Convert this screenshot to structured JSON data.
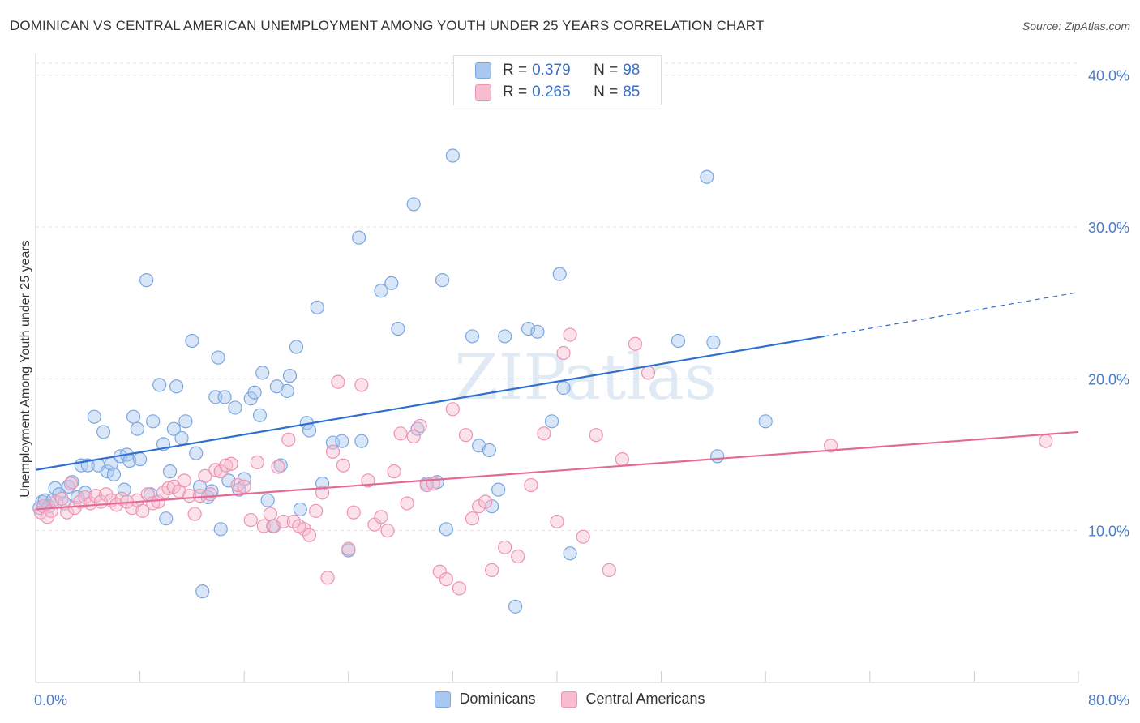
{
  "title": "DOMINICAN VS CENTRAL AMERICAN UNEMPLOYMENT AMONG YOUTH UNDER 25 YEARS CORRELATION CHART",
  "source": "Source: ZipAtlas.com",
  "watermark": "ZIPatlas",
  "legend_top": [
    {
      "r_label": "R =",
      "r_value": "0.379",
      "n_label": "N =",
      "n_value": "98",
      "color": "#a9c8ef",
      "border": "#7aa7e0"
    },
    {
      "r_label": "R =",
      "r_value": "0.265",
      "n_label": "N =",
      "n_value": "85",
      "color": "#f7bcd0",
      "border": "#ee93b2"
    }
  ],
  "legend_bottom": [
    {
      "label": "Dominicans",
      "color": "#a9c8ef",
      "border": "#7aa7e0"
    },
    {
      "label": "Central Americans",
      "color": "#f7bcd0",
      "border": "#ee93b2"
    }
  ],
  "chart_data": {
    "type": "scatter",
    "title": "DOMINICAN VS CENTRAL AMERICAN UNEMPLOYMENT AMONG YOUTH UNDER 25 YEARS CORRELATION CHART",
    "xlabel": "",
    "ylabel": "Unemployment Among Youth under 25 years",
    "xlim": [
      0,
      80
    ],
    "ylim": [
      0,
      41
    ],
    "x_tick_labels": [
      "0.0%",
      "80.0%"
    ],
    "y_ticks": [
      10,
      20,
      30,
      40
    ],
    "y_tick_labels": [
      "10.0%",
      "20.0%",
      "30.0%",
      "40.0%"
    ],
    "grid": true,
    "series": [
      {
        "name": "Dominicans",
        "color": "#7aa7e0",
        "fill": "#a9c8ef",
        "trend_color": "#2f6fcf",
        "trend": {
          "x0": 0,
          "y0": 14.0,
          "x1": 60.5,
          "y1": 22.8,
          "x_dash_end": 80,
          "y_dash_end": 25.7
        },
        "points": [
          [
            0.3,
            11.5
          ],
          [
            0.5,
            11.9
          ],
          [
            0.7,
            12.0
          ],
          [
            1.0,
            11.6
          ],
          [
            1.3,
            12.0
          ],
          [
            1.5,
            12.8
          ],
          [
            1.8,
            12.4
          ],
          [
            2.2,
            11.8
          ],
          [
            2.5,
            12.9
          ],
          [
            2.8,
            13.2
          ],
          [
            3.2,
            12.2
          ],
          [
            3.5,
            14.3
          ],
          [
            3.8,
            12.5
          ],
          [
            4.0,
            14.3
          ],
          [
            4.5,
            17.5
          ],
          [
            4.8,
            14.3
          ],
          [
            5.2,
            16.5
          ],
          [
            5.5,
            13.9
          ],
          [
            5.8,
            14.4
          ],
          [
            6.0,
            13.7
          ],
          [
            6.5,
            14.9
          ],
          [
            6.8,
            12.7
          ],
          [
            7.0,
            15.0
          ],
          [
            7.2,
            14.6
          ],
          [
            7.5,
            17.5
          ],
          [
            7.8,
            16.7
          ],
          [
            8.0,
            14.7
          ],
          [
            8.5,
            26.5
          ],
          [
            8.8,
            12.4
          ],
          [
            9.0,
            17.2
          ],
          [
            9.5,
            19.6
          ],
          [
            9.8,
            15.7
          ],
          [
            10.0,
            10.8
          ],
          [
            10.3,
            13.9
          ],
          [
            10.6,
            16.7
          ],
          [
            10.8,
            19.5
          ],
          [
            11.2,
            16.1
          ],
          [
            11.5,
            17.2
          ],
          [
            12.0,
            22.5
          ],
          [
            12.3,
            15.1
          ],
          [
            12.6,
            12.9
          ],
          [
            12.8,
            6.0
          ],
          [
            13.2,
            12.2
          ],
          [
            13.5,
            12.6
          ],
          [
            13.8,
            18.8
          ],
          [
            14.0,
            21.4
          ],
          [
            14.2,
            10.1
          ],
          [
            14.5,
            18.8
          ],
          [
            14.8,
            13.3
          ],
          [
            15.3,
            18.1
          ],
          [
            15.6,
            12.7
          ],
          [
            16.0,
            13.4
          ],
          [
            16.5,
            18.7
          ],
          [
            16.8,
            19.1
          ],
          [
            17.2,
            17.6
          ],
          [
            17.4,
            20.4
          ],
          [
            17.8,
            12.0
          ],
          [
            18.2,
            10.3
          ],
          [
            18.5,
            19.5
          ],
          [
            18.8,
            14.3
          ],
          [
            19.3,
            19.2
          ],
          [
            19.5,
            20.2
          ],
          [
            20.0,
            22.1
          ],
          [
            20.3,
            11.4
          ],
          [
            20.8,
            17.1
          ],
          [
            21.0,
            16.6
          ],
          [
            21.6,
            24.7
          ],
          [
            22.0,
            13.1
          ],
          [
            22.8,
            15.8
          ],
          [
            23.5,
            15.9
          ],
          [
            24.0,
            8.7
          ],
          [
            24.8,
            29.3
          ],
          [
            25.0,
            15.9
          ],
          [
            26.5,
            25.8
          ],
          [
            27.3,
            26.3
          ],
          [
            27.8,
            23.3
          ],
          [
            29.0,
            31.5
          ],
          [
            29.3,
            16.7
          ],
          [
            30.0,
            13.1
          ],
          [
            30.8,
            13.2
          ],
          [
            31.2,
            26.5
          ],
          [
            31.5,
            10.1
          ],
          [
            32.0,
            34.7
          ],
          [
            33.5,
            22.8
          ],
          [
            34.0,
            15.6
          ],
          [
            34.8,
            15.3
          ],
          [
            35.0,
            11.6
          ],
          [
            35.5,
            12.7
          ],
          [
            36.0,
            22.8
          ],
          [
            36.8,
            5.0
          ],
          [
            37.8,
            23.3
          ],
          [
            38.5,
            23.1
          ],
          [
            39.6,
            17.2
          ],
          [
            40.2,
            26.9
          ],
          [
            40.5,
            19.4
          ],
          [
            41.0,
            8.5
          ],
          [
            49.3,
            22.5
          ],
          [
            51.5,
            33.3
          ],
          [
            52.0,
            22.4
          ],
          [
            52.3,
            14.9
          ],
          [
            56.0,
            17.2
          ]
        ]
      },
      {
        "name": "Central Americans",
        "color": "#ee93b2",
        "fill": "#f7bcd0",
        "trend_color": "#e46a94",
        "trend": {
          "x0": 0,
          "y0": 11.4,
          "x1": 80,
          "y1": 16.5
        },
        "points": [
          [
            0.4,
            11.2
          ],
          [
            0.6,
            11.6
          ],
          [
            0.9,
            10.9
          ],
          [
            1.2,
            11.3
          ],
          [
            1.6,
            11.9
          ],
          [
            2.0,
            12.1
          ],
          [
            2.4,
            11.2
          ],
          [
            2.7,
            13.1
          ],
          [
            3.0,
            11.5
          ],
          [
            3.4,
            11.9
          ],
          [
            3.8,
            12.2
          ],
          [
            4.2,
            11.8
          ],
          [
            4.6,
            12.3
          ],
          [
            5.0,
            11.9
          ],
          [
            5.4,
            12.4
          ],
          [
            5.8,
            12.0
          ],
          [
            6.2,
            11.7
          ],
          [
            6.6,
            12.1
          ],
          [
            7.0,
            11.9
          ],
          [
            7.4,
            11.5
          ],
          [
            7.8,
            12.0
          ],
          [
            8.2,
            11.3
          ],
          [
            8.6,
            12.4
          ],
          [
            9.0,
            11.8
          ],
          [
            9.4,
            11.9
          ],
          [
            9.8,
            12.5
          ],
          [
            10.2,
            12.8
          ],
          [
            10.6,
            12.9
          ],
          [
            11.0,
            12.6
          ],
          [
            11.4,
            13.3
          ],
          [
            11.8,
            12.3
          ],
          [
            12.2,
            11.1
          ],
          [
            12.6,
            12.3
          ],
          [
            13.0,
            13.6
          ],
          [
            13.4,
            12.4
          ],
          [
            13.8,
            14.0
          ],
          [
            14.2,
            13.9
          ],
          [
            14.6,
            14.3
          ],
          [
            15.0,
            14.4
          ],
          [
            15.5,
            13.0
          ],
          [
            16.0,
            12.9
          ],
          [
            16.5,
            10.7
          ],
          [
            17.0,
            14.5
          ],
          [
            17.5,
            10.3
          ],
          [
            18.0,
            11.1
          ],
          [
            18.3,
            10.3
          ],
          [
            18.6,
            14.2
          ],
          [
            19.0,
            10.6
          ],
          [
            19.4,
            16.0
          ],
          [
            19.8,
            10.6
          ],
          [
            20.2,
            10.3
          ],
          [
            20.6,
            10.1
          ],
          [
            21.0,
            9.7
          ],
          [
            21.5,
            11.3
          ],
          [
            22.0,
            12.5
          ],
          [
            22.4,
            6.9
          ],
          [
            22.8,
            15.2
          ],
          [
            23.2,
            19.8
          ],
          [
            23.6,
            14.3
          ],
          [
            24.0,
            8.8
          ],
          [
            24.4,
            11.2
          ],
          [
            25.0,
            19.6
          ],
          [
            25.5,
            13.3
          ],
          [
            26.0,
            10.4
          ],
          [
            26.5,
            10.9
          ],
          [
            27.0,
            10.0
          ],
          [
            27.5,
            13.9
          ],
          [
            28.0,
            16.4
          ],
          [
            28.5,
            11.8
          ],
          [
            29.0,
            16.2
          ],
          [
            29.5,
            16.9
          ],
          [
            30.0,
            13.0
          ],
          [
            30.5,
            13.1
          ],
          [
            31.0,
            7.3
          ],
          [
            31.5,
            6.8
          ],
          [
            32.0,
            18.0
          ],
          [
            32.5,
            6.2
          ],
          [
            33.0,
            16.3
          ],
          [
            33.5,
            10.8
          ],
          [
            34.0,
            11.6
          ],
          [
            34.5,
            11.9
          ],
          [
            35.0,
            7.4
          ],
          [
            36.0,
            8.9
          ],
          [
            37.0,
            8.3
          ],
          [
            38.0,
            13.0
          ],
          [
            39.0,
            16.4
          ],
          [
            40.0,
            10.6
          ],
          [
            40.5,
            21.7
          ],
          [
            41.0,
            22.9
          ],
          [
            42.0,
            9.6
          ],
          [
            43.0,
            16.3
          ],
          [
            44.0,
            7.4
          ],
          [
            45.0,
            14.7
          ],
          [
            46.0,
            22.3
          ],
          [
            47.0,
            20.4
          ],
          [
            61.0,
            15.6
          ],
          [
            77.5,
            15.9
          ]
        ]
      }
    ]
  }
}
